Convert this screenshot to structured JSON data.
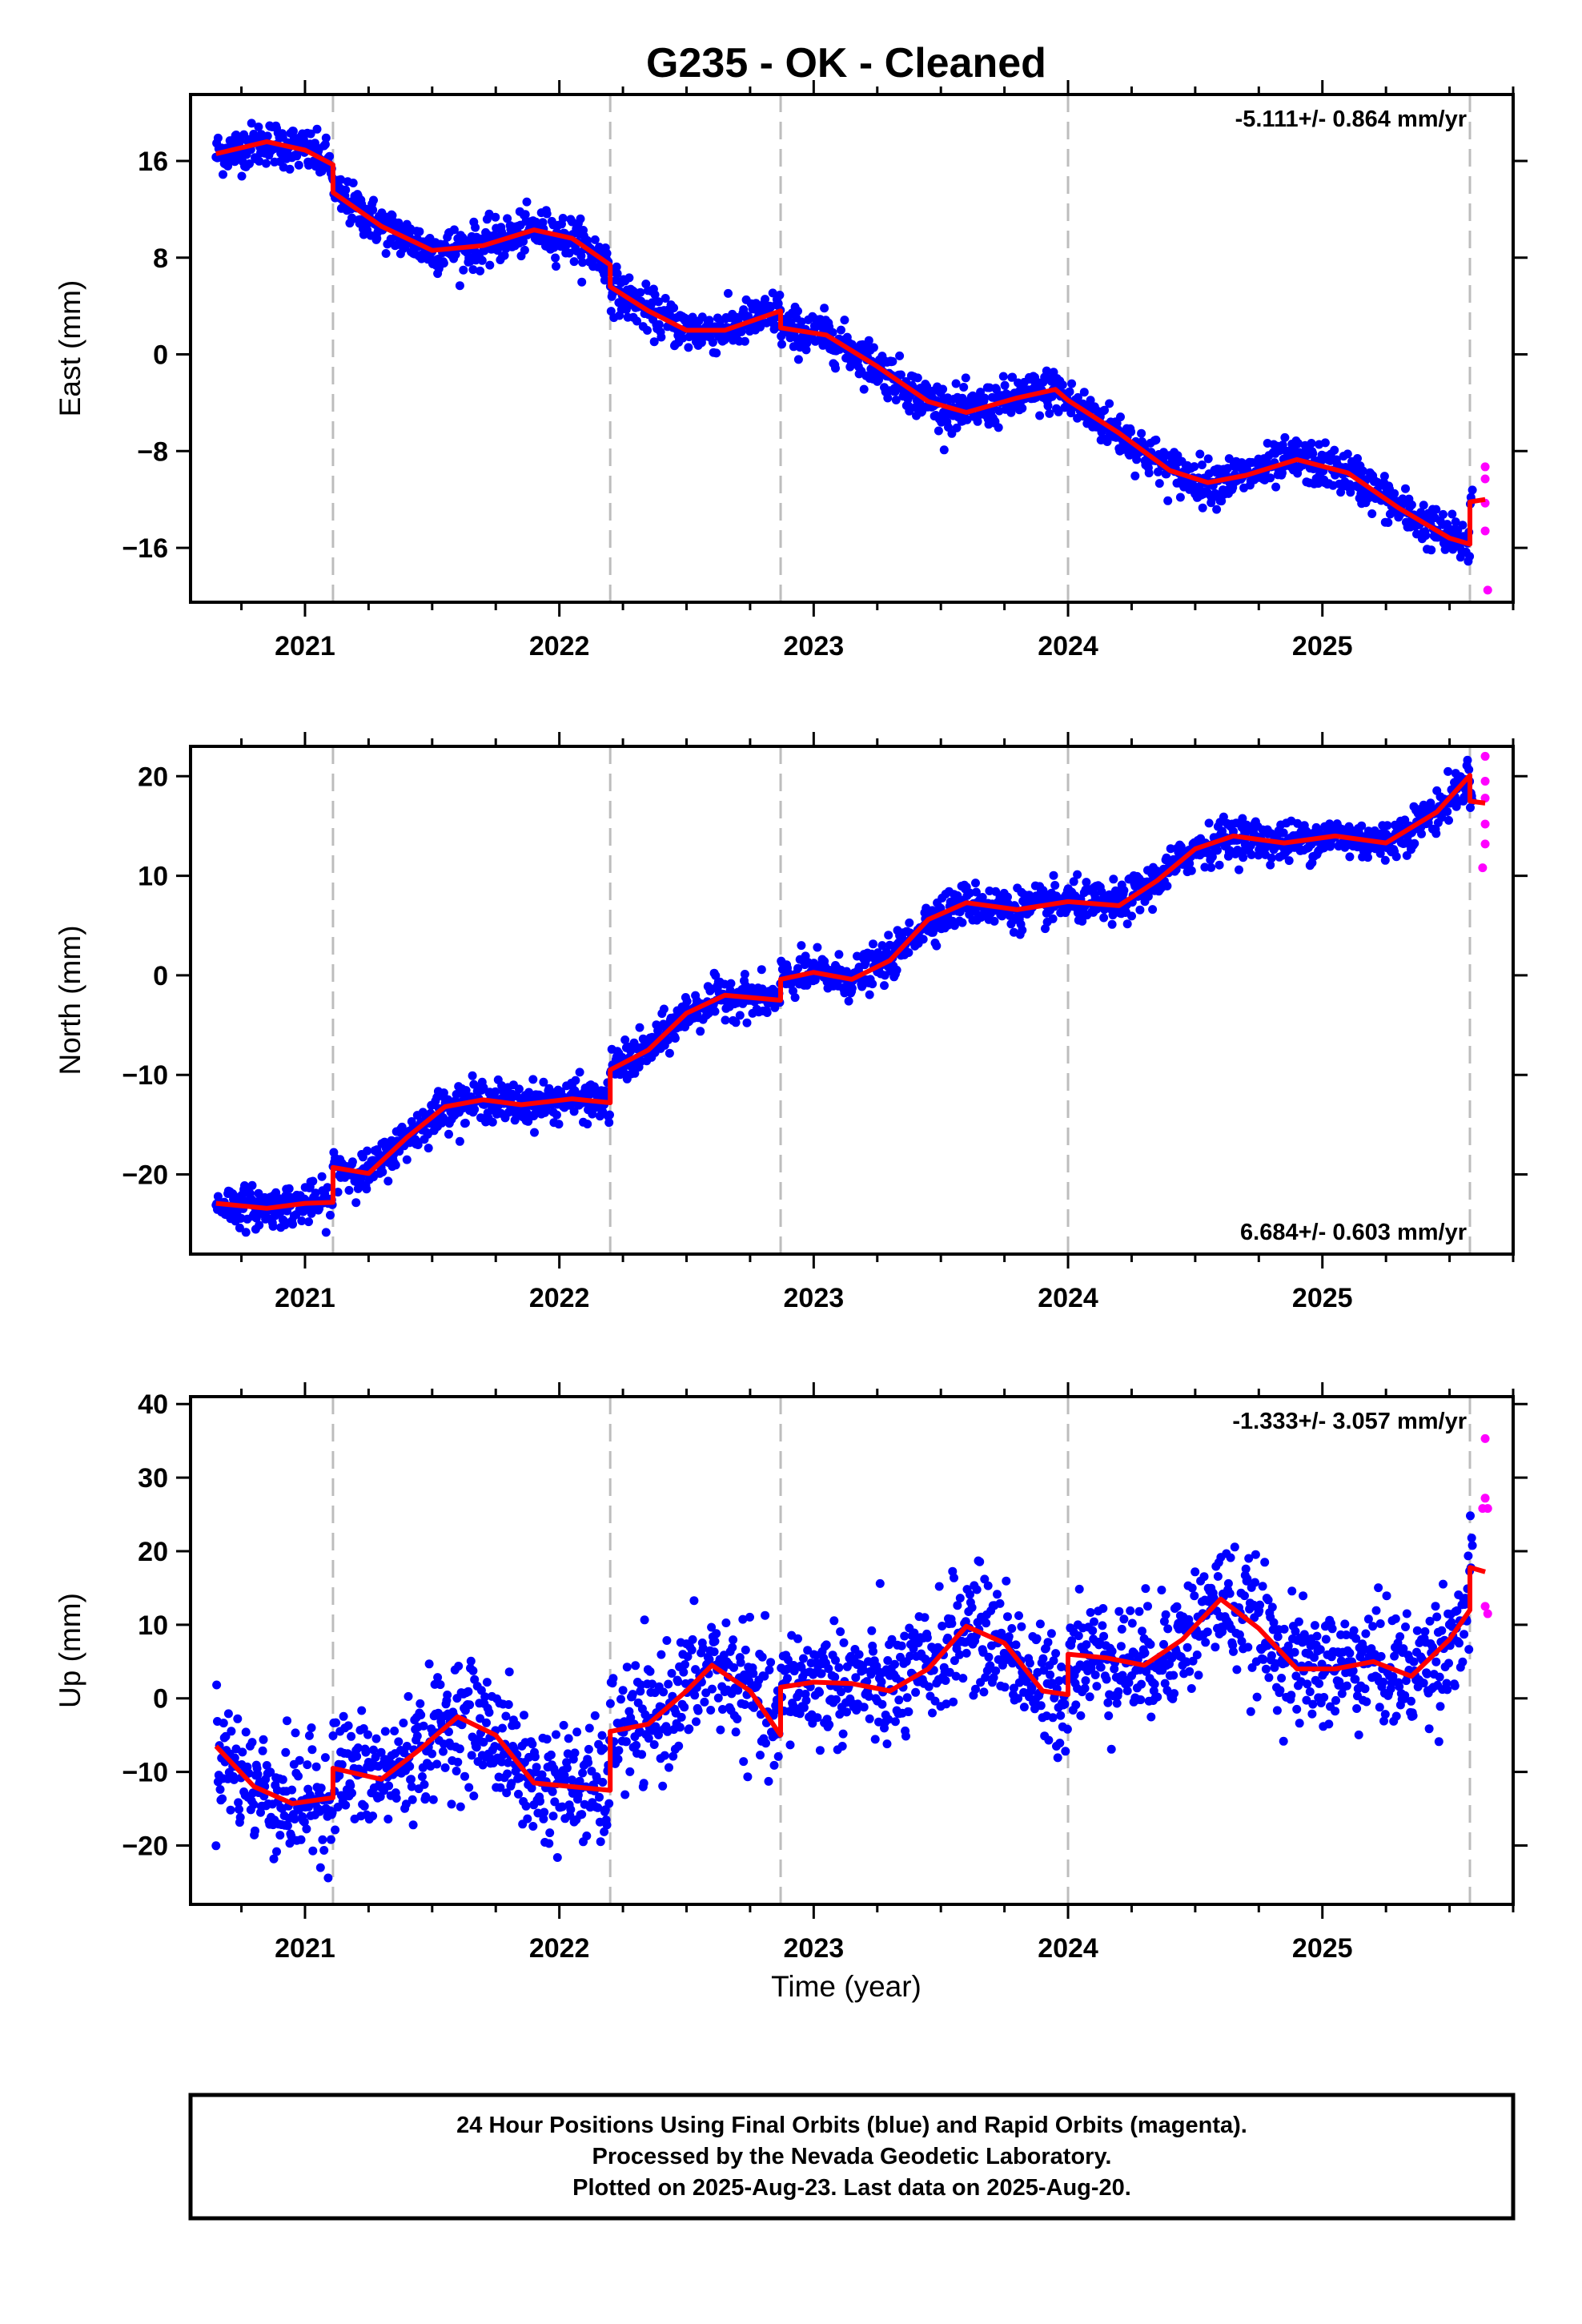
{
  "title": "G235  - OK - Cleaned",
  "xlabel": "Time (year)",
  "footer": {
    "line1": "24 Hour Positions Using Final Orbits (blue) and Rapid Orbits (magenta).",
    "line2": "Processed by the Nevada Geodetic Laboratory.",
    "line3": "Plotted on 2025-Aug-23. Last data on 2025-Aug-20."
  },
  "colors": {
    "final_orbits": "#0000ff",
    "rapid_orbits": "#ff00ff",
    "model": "#ff0000",
    "event_lines": "#bdbdbd"
  },
  "chart_data": [
    {
      "type": "scatter",
      "ylabel": "East (mm)",
      "rate_label": "-5.111+/- 0.864 mm/yr",
      "rate_position": "top-right",
      "xlim": [
        2020.55,
        2025.75
      ],
      "ylim": [
        -20.5,
        21.5
      ],
      "x_ticks": [
        2021,
        2022,
        2023,
        2024,
        2025
      ],
      "x_tick_labels": [
        "2021",
        "2022",
        "2023",
        "2024",
        "2025"
      ],
      "y_ticks": [
        -16,
        -8,
        0,
        8,
        16
      ],
      "y_tick_labels": [
        "−16",
        "−8",
        "0",
        "8",
        "16"
      ],
      "event_lines": [
        2021.11,
        2022.2,
        2022.87,
        2024.0,
        2025.58
      ],
      "model_breaks": [
        {
          "at": 2021.11,
          "from": 15.7,
          "to": 13.4
        },
        {
          "at": 2022.2,
          "from": 7.4,
          "to": 5.6
        },
        {
          "at": 2022.87,
          "from": 3.6,
          "to": 2.2
        },
        {
          "at": 2025.58,
          "from": -15.7,
          "to": -12.2
        }
      ],
      "trend": [
        [
          2020.65,
          16.6
        ],
        [
          2020.85,
          17.6
        ],
        [
          2021.0,
          16.9
        ],
        [
          2021.11,
          15.7
        ],
        [
          2021.11,
          13.4
        ],
        [
          2021.3,
          10.6
        ],
        [
          2021.5,
          8.6
        ],
        [
          2021.7,
          9.0
        ],
        [
          2021.9,
          10.3
        ],
        [
          2022.05,
          9.6
        ],
        [
          2022.2,
          7.4
        ],
        [
          2022.2,
          5.6
        ],
        [
          2022.35,
          3.6
        ],
        [
          2022.5,
          2.0
        ],
        [
          2022.65,
          2.0
        ],
        [
          2022.87,
          3.6
        ],
        [
          2022.87,
          2.2
        ],
        [
          2023.05,
          1.6
        ],
        [
          2023.25,
          -1.0
        ],
        [
          2023.45,
          -3.9
        ],
        [
          2023.6,
          -4.8
        ],
        [
          2023.8,
          -3.6
        ],
        [
          2023.95,
          -2.9
        ],
        [
          2024.0,
          -3.8
        ],
        [
          2024.2,
          -6.5
        ],
        [
          2024.4,
          -9.6
        ],
        [
          2024.55,
          -10.6
        ],
        [
          2024.7,
          -10.0
        ],
        [
          2024.9,
          -8.7
        ],
        [
          2025.1,
          -9.8
        ],
        [
          2025.3,
          -12.7
        ],
        [
          2025.5,
          -15.2
        ],
        [
          2025.58,
          -15.7
        ],
        [
          2025.58,
          -12.2
        ],
        [
          2025.64,
          -12.0
        ]
      ],
      "scatter_sigma": 0.9,
      "rapid_points": [
        [
          2025.64,
          -9.3
        ],
        [
          2025.64,
          -10.3
        ],
        [
          2025.64,
          -12.3
        ],
        [
          2025.64,
          -14.6
        ],
        [
          2025.65,
          -19.5
        ]
      ]
    },
    {
      "type": "scatter",
      "ylabel": "North (mm)",
      "rate_label": "6.684+/- 0.603 mm/yr",
      "rate_position": "bottom-right",
      "xlim": [
        2020.55,
        2025.75
      ],
      "ylim": [
        -28,
        23
      ],
      "x_ticks": [
        2021,
        2022,
        2023,
        2024,
        2025
      ],
      "x_tick_labels": [
        "2021",
        "2022",
        "2023",
        "2024",
        "2025"
      ],
      "y_ticks": [
        -20,
        -10,
        0,
        10,
        20
      ],
      "y_tick_labels": [
        "−20",
        "−10",
        "0",
        "10",
        "20"
      ],
      "event_lines": [
        2021.11,
        2022.2,
        2022.87,
        2024.0,
        2025.58
      ],
      "model_breaks": [
        {
          "at": 2021.11,
          "from": -22.8,
          "to": -19.3
        },
        {
          "at": 2022.2,
          "from": -12.8,
          "to": -9.5
        },
        {
          "at": 2022.87,
          "from": -2.5,
          "to": -0.4
        },
        {
          "at": 2025.58,
          "from": 20.1,
          "to": 17.5
        }
      ],
      "trend": [
        [
          2020.65,
          -22.9
        ],
        [
          2020.85,
          -23.4
        ],
        [
          2021.0,
          -22.9
        ],
        [
          2021.11,
          -22.8
        ],
        [
          2021.11,
          -19.3
        ],
        [
          2021.25,
          -19.9
        ],
        [
          2021.4,
          -16.3
        ],
        [
          2021.55,
          -13.2
        ],
        [
          2021.7,
          -12.5
        ],
        [
          2021.85,
          -13.0
        ],
        [
          2022.05,
          -12.4
        ],
        [
          2022.2,
          -12.8
        ],
        [
          2022.2,
          -9.5
        ],
        [
          2022.35,
          -7.5
        ],
        [
          2022.5,
          -3.8
        ],
        [
          2022.65,
          -2.0
        ],
        [
          2022.87,
          -2.5
        ],
        [
          2022.87,
          -0.4
        ],
        [
          2023.0,
          0.3
        ],
        [
          2023.15,
          -0.4
        ],
        [
          2023.3,
          1.5
        ],
        [
          2023.45,
          5.6
        ],
        [
          2023.6,
          7.3
        ],
        [
          2023.8,
          6.6
        ],
        [
          2024.0,
          7.4
        ],
        [
          2024.2,
          7.0
        ],
        [
          2024.35,
          9.5
        ],
        [
          2024.5,
          12.7
        ],
        [
          2024.65,
          14.0
        ],
        [
          2024.85,
          13.3
        ],
        [
          2025.05,
          14.0
        ],
        [
          2025.25,
          13.3
        ],
        [
          2025.45,
          16.4
        ],
        [
          2025.58,
          20.1
        ],
        [
          2025.58,
          17.5
        ],
        [
          2025.64,
          17.3
        ]
      ],
      "scatter_sigma": 1.0,
      "rapid_points": [
        [
          2025.64,
          22.0
        ],
        [
          2025.64,
          19.5
        ],
        [
          2025.64,
          17.8
        ],
        [
          2025.64,
          15.2
        ],
        [
          2025.64,
          13.2
        ],
        [
          2025.63,
          10.8
        ]
      ]
    },
    {
      "type": "scatter",
      "ylabel": "Up (mm)",
      "rate_label": "-1.333+/- 3.057 mm/yr",
      "rate_position": "top-right",
      "xlim": [
        2020.55,
        2025.75
      ],
      "ylim": [
        -28,
        41
      ],
      "x_ticks": [
        2021,
        2022,
        2023,
        2024,
        2025
      ],
      "x_tick_labels": [
        "2021",
        "2022",
        "2023",
        "2024",
        "2025"
      ],
      "y_ticks": [
        -20,
        -10,
        0,
        10,
        20,
        30,
        40
      ],
      "y_tick_labels": [
        "−20",
        "−10",
        "0",
        "10",
        "20",
        "30",
        "40"
      ],
      "event_lines": [
        2021.11,
        2022.2,
        2022.87,
        2024.0,
        2025.58
      ],
      "model_breaks": [
        {
          "at": 2021.11,
          "from": -13.5,
          "to": -9.5
        },
        {
          "at": 2022.2,
          "from": -12.5,
          "to": -4.5
        },
        {
          "at": 2022.87,
          "from": -5.0,
          "to": 1.5
        },
        {
          "at": 2024.0,
          "from": 0.5,
          "to": 6.0
        },
        {
          "at": 2025.58,
          "from": 12.0,
          "to": 17.8
        }
      ],
      "trend": [
        [
          2020.65,
          -6.5
        ],
        [
          2020.8,
          -12.0
        ],
        [
          2020.95,
          -14.3
        ],
        [
          2021.11,
          -13.5
        ],
        [
          2021.11,
          -9.5
        ],
        [
          2021.3,
          -11.0
        ],
        [
          2021.45,
          -7.0
        ],
        [
          2021.6,
          -2.5
        ],
        [
          2021.75,
          -5.0
        ],
        [
          2021.9,
          -11.5
        ],
        [
          2022.05,
          -12.0
        ],
        [
          2022.2,
          -12.5
        ],
        [
          2022.2,
          -4.5
        ],
        [
          2022.35,
          -3.5
        ],
        [
          2022.5,
          1.0
        ],
        [
          2022.6,
          4.5
        ],
        [
          2022.75,
          1.0
        ],
        [
          2022.87,
          -5.0
        ],
        [
          2022.87,
          1.5
        ],
        [
          2023.0,
          2.2
        ],
        [
          2023.15,
          2.0
        ],
        [
          2023.3,
          1.0
        ],
        [
          2023.45,
          4.0
        ],
        [
          2023.6,
          9.8
        ],
        [
          2023.75,
          7.5
        ],
        [
          2023.9,
          1.0
        ],
        [
          2024.0,
          0.5
        ],
        [
          2024.0,
          6.0
        ],
        [
          2024.15,
          5.5
        ],
        [
          2024.3,
          4.5
        ],
        [
          2024.45,
          8.0
        ],
        [
          2024.6,
          13.5
        ],
        [
          2024.75,
          9.5
        ],
        [
          2024.9,
          4.0
        ],
        [
          2025.05,
          4.0
        ],
        [
          2025.2,
          5.0
        ],
        [
          2025.35,
          3.0
        ],
        [
          2025.5,
          8.0
        ],
        [
          2025.58,
          12.0
        ],
        [
          2025.58,
          17.8
        ],
        [
          2025.64,
          17.2
        ]
      ],
      "scatter_sigma": 4.0,
      "rapid_points": [
        [
          2025.64,
          35.3
        ],
        [
          2025.64,
          27.2
        ],
        [
          2025.63,
          25.8
        ],
        [
          2025.65,
          25.8
        ],
        [
          2025.64,
          12.5
        ],
        [
          2025.65,
          11.5
        ]
      ]
    }
  ]
}
